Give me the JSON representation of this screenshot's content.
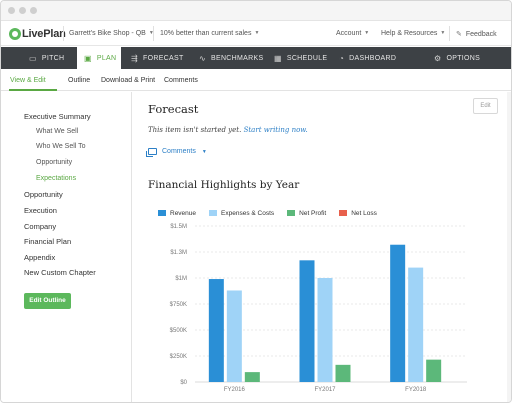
{
  "app": {
    "logo_text": "LivePlan"
  },
  "topbar": {
    "company": "Garrett's Bike Shop - QB",
    "comparison": "10% better than current sales",
    "account": "Account",
    "help": "Help & Resources",
    "feedback": "Feedback"
  },
  "nav": {
    "items": [
      {
        "label": "PITCH",
        "icon": "monitor-icon"
      },
      {
        "label": "PLAN",
        "icon": "document-icon"
      },
      {
        "label": "FORECAST",
        "icon": "forecast-icon"
      },
      {
        "label": "BENCHMARKS",
        "icon": "chart-line-icon"
      },
      {
        "label": "SCHEDULE",
        "icon": "calendar-icon"
      },
      {
        "label": "DASHBOARD",
        "icon": "dashboard-icon"
      },
      {
        "label": "OPTIONS",
        "icon": "gear-icon"
      }
    ],
    "active_index": 1
  },
  "subnav": {
    "items": [
      "View & Edit",
      "Outline",
      "Download & Print",
      "Comments"
    ],
    "active_index": 0
  },
  "sidebar": {
    "items": [
      {
        "label": "Executive Summary",
        "level": 0
      },
      {
        "label": "What We Sell",
        "level": 1
      },
      {
        "label": "Who We Sell To",
        "level": 1
      },
      {
        "label": "Opportunity",
        "level": 1
      },
      {
        "label": "Expectations",
        "level": 1,
        "active": true
      },
      {
        "label": "Opportunity",
        "level": 0
      },
      {
        "label": "Execution",
        "level": 0
      },
      {
        "label": "Company",
        "level": 0
      },
      {
        "label": "Financial Plan",
        "level": 0
      },
      {
        "label": "Appendix",
        "level": 0
      },
      {
        "label": "New Custom Chapter",
        "level": 0
      }
    ],
    "edit_outline_label": "Edit Outline"
  },
  "main": {
    "title": "Forecast",
    "edit_label": "Edit",
    "status_text": "This item isn't started yet.",
    "status_link": "Start writing now.",
    "comments_label": "Comments"
  },
  "colors": {
    "accent_green": "#5aa843",
    "nav_bg": "#3d4145",
    "link_blue": "#2c7fc6",
    "revenue": "#2a8fd6",
    "expenses": "#9fd3f7",
    "net_profit": "#5cb87a",
    "net_loss": "#e8604c"
  },
  "chart_data": {
    "type": "bar",
    "title": "Financial Highlights by Year",
    "categories": [
      "FY2016",
      "FY2017",
      "FY2018"
    ],
    "series": [
      {
        "name": "Revenue",
        "color": "#2a8fd6",
        "values": [
          990000,
          1170000,
          1320000
        ]
      },
      {
        "name": "Expenses & Costs",
        "color": "#9fd3f7",
        "values": [
          880000,
          1000000,
          1100000
        ]
      },
      {
        "name": "Net Profit",
        "color": "#5cb87a",
        "values": [
          95000,
          165000,
          215000
        ]
      },
      {
        "name": "Net Loss",
        "color": "#e8604c",
        "values": [
          0,
          0,
          0
        ]
      }
    ],
    "ylim": [
      0,
      1500000
    ],
    "yticks": [
      0,
      250000,
      500000,
      750000,
      1000000,
      1250000,
      1500000
    ],
    "ytick_labels": [
      "$0",
      "$250K",
      "$500K",
      "$750K",
      "$1M",
      "$1.3M",
      "$1.5M"
    ],
    "grid": true,
    "legend": "top-left"
  }
}
